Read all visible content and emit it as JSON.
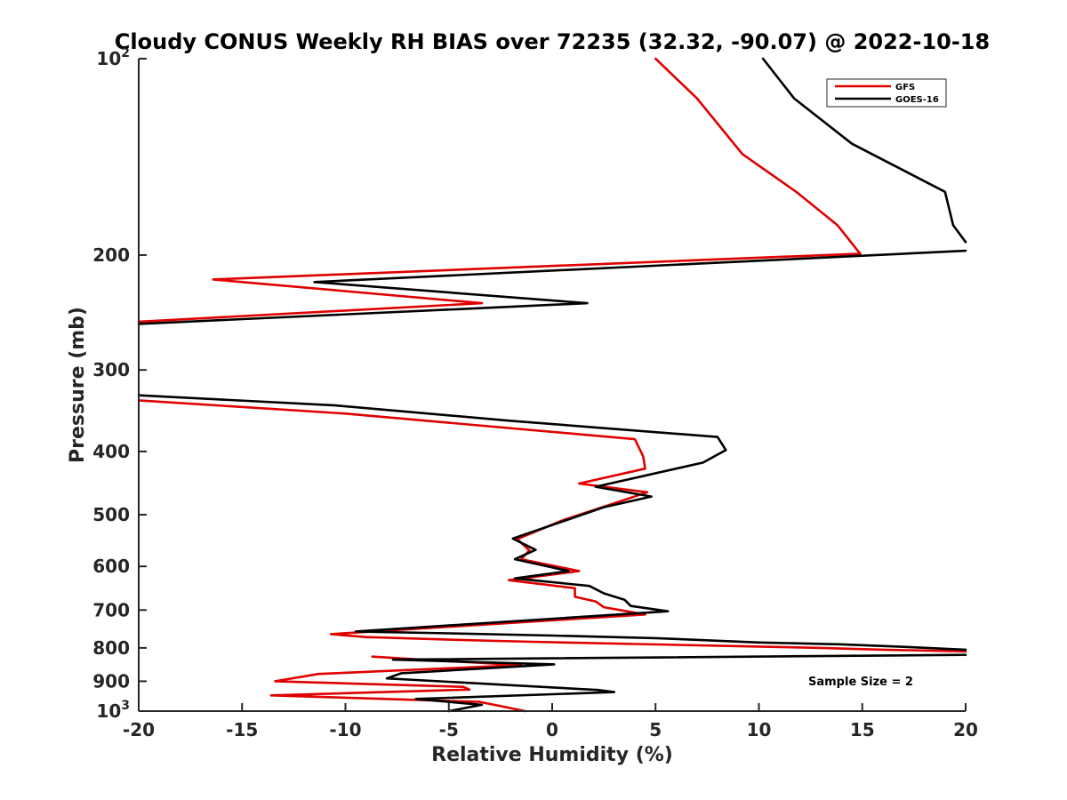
{
  "chart_data": {
    "type": "line",
    "title": "Cloudy CONUS Weekly RH BIAS over 72235 (32.32, -90.07) @ 2022-10-18",
    "xlabel": "Relative Humidity (%)",
    "ylabel": "Pressure (mb)",
    "xlim": [
      -20,
      20
    ],
    "ylim": [
      100,
      1000
    ],
    "y_scale": "log-reversed",
    "x_ticks": [
      -20,
      -15,
      -10,
      -5,
      0,
      5,
      10,
      15,
      20
    ],
    "y_ticks": [
      {
        "value": 100,
        "base": "10",
        "exp": "2"
      },
      {
        "value": 200,
        "label": "200"
      },
      {
        "value": 300,
        "label": "300"
      },
      {
        "value": 400,
        "label": "400"
      },
      {
        "value": 500,
        "label": "500"
      },
      {
        "value": 600,
        "label": "600"
      },
      {
        "value": 700,
        "label": "700"
      },
      {
        "value": 800,
        "label": "800"
      },
      {
        "value": 900,
        "label": "900"
      },
      {
        "value": 1000,
        "base": "10",
        "exp": "3"
      }
    ],
    "legend_position": "top-right",
    "annotation": "Sample Size = 2",
    "colors": {
      "GFS": "#e00000",
      "GOES-16": "#000000"
    },
    "series": [
      {
        "name": "GFS",
        "segments": [
          [
            [
              5,
              100
            ],
            [
              7,
              115
            ],
            [
              9.2,
              140
            ],
            [
              11.8,
              160
            ],
            [
              13.8,
              180
            ],
            [
              14.9,
              199
            ]
          ],
          [
            [
              14.9,
              199
            ],
            [
              -16.4,
              218
            ],
            [
              -3.4,
              237
            ],
            [
              -20,
              253
            ]
          ],
          [
            [
              -20,
              334
            ],
            [
              -10,
              350
            ],
            [
              4,
              383
            ],
            [
              4.4,
              407
            ],
            [
              4.5,
              425
            ],
            [
              1.3,
              448
            ],
            [
              4.6,
              462
            ],
            [
              0.5,
              510
            ],
            [
              -1.7,
              545
            ],
            [
              -1.1,
              567
            ],
            [
              -1.5,
              585
            ],
            [
              1.3,
              610
            ],
            [
              -2.1,
              630
            ],
            [
              1.1,
              648
            ],
            [
              1.1,
              668
            ],
            [
              2.1,
              679
            ],
            [
              2.5,
              693
            ],
            [
              4.5,
              711
            ],
            [
              -10.7,
              762
            ],
            [
              -9,
              770
            ],
            [
              -5,
              777
            ],
            [
              -1,
              783
            ],
            [
              4,
              789
            ],
            [
              9,
              795
            ],
            [
              13,
              800
            ],
            [
              16,
              805
            ],
            [
              20,
              810
            ]
          ],
          [
            [
              -8.7,
              825
            ],
            [
              -6.5,
              833
            ],
            [
              -1.5,
              850
            ],
            [
              -11.3,
              877
            ],
            [
              -13.4,
              900
            ],
            [
              -4.3,
              918
            ],
            [
              -4,
              927
            ],
            [
              -13.6,
              946
            ],
            [
              -3.5,
              968
            ],
            [
              -1.3,
              1000
            ]
          ]
        ]
      },
      {
        "name": "GOES-16",
        "segments": [
          [
            [
              10.2,
              100
            ],
            [
              11.7,
              115
            ],
            [
              14.5,
              135
            ],
            [
              19,
              160
            ],
            [
              19.4,
              180
            ],
            [
              20,
              191
            ]
          ],
          [
            [
              20,
              197
            ],
            [
              -11.5,
              220
            ],
            [
              1.7,
              237
            ],
            [
              -20,
              255
            ]
          ],
          [
            [
              -20,
              328
            ],
            [
              -10.5,
              340
            ],
            [
              -2,
              359
            ],
            [
              8,
              380
            ],
            [
              8.4,
              398
            ],
            [
              7.3,
              416
            ],
            [
              2.1,
              453
            ],
            [
              4.8,
              469
            ],
            [
              2.5,
              487
            ],
            [
              -1.9,
              544
            ],
            [
              -0.8,
              566
            ],
            [
              -1.8,
              585
            ],
            [
              0.8,
              610
            ],
            [
              -1.8,
              626
            ],
            [
              1.8,
              643
            ],
            [
              2.5,
              660
            ],
            [
              3.5,
              675
            ],
            [
              3.8,
              690
            ],
            [
              5.6,
              703
            ],
            [
              -9.5,
              755
            ],
            [
              -5,
              760
            ],
            [
              0,
              766
            ],
            [
              5,
              773
            ],
            [
              10,
              785
            ],
            [
              14,
              790
            ],
            [
              17,
              797
            ],
            [
              20,
              805
            ]
          ],
          [
            [
              20,
              820
            ],
            [
              -7.7,
              834
            ],
            [
              0.1,
              848
            ],
            [
              -7.3,
              875
            ],
            [
              -8,
              891
            ],
            [
              2.2,
              928
            ],
            [
              3,
              935
            ],
            [
              -6.6,
              958
            ],
            [
              -3.4,
              978
            ],
            [
              -5,
              1000
            ]
          ]
        ]
      }
    ]
  }
}
